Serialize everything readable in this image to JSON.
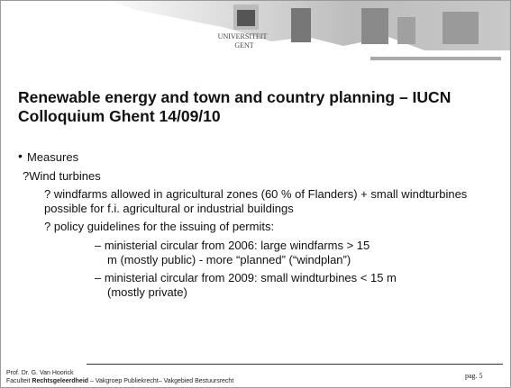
{
  "header": {
    "logo": [
      "UNIVERSITEIT",
      "GENT"
    ]
  },
  "title": "Renewable energy and town and country planning – IUCN Colloquium Ghent 14/09/10",
  "body": {
    "items": [
      "Measures",
      "?Wind turbines",
      "? windfarms allowed in agricultural zones (60 % of Flanders) + small windturbines possible for f.i. agricultural or industrial buildings",
      "? policy guidelines for the issuing of permits:",
      "– ministerial circular from 2006: large windfarms > 15 m (mostly public) - more “planned” (“windplan”)",
      "– ministerial circular from 2009: small windturbines < 15 m (mostly private)"
    ]
  },
  "footer": {
    "author": "Prof. Dr. G. Van Hoorick",
    "affiliation": [
      "Faculteit ",
      "Rechtsgeleerdheid",
      " – Vakgroep Publiekrecht– Vakgebied Bestuursrecht"
    ],
    "page": "pag. 5"
  }
}
